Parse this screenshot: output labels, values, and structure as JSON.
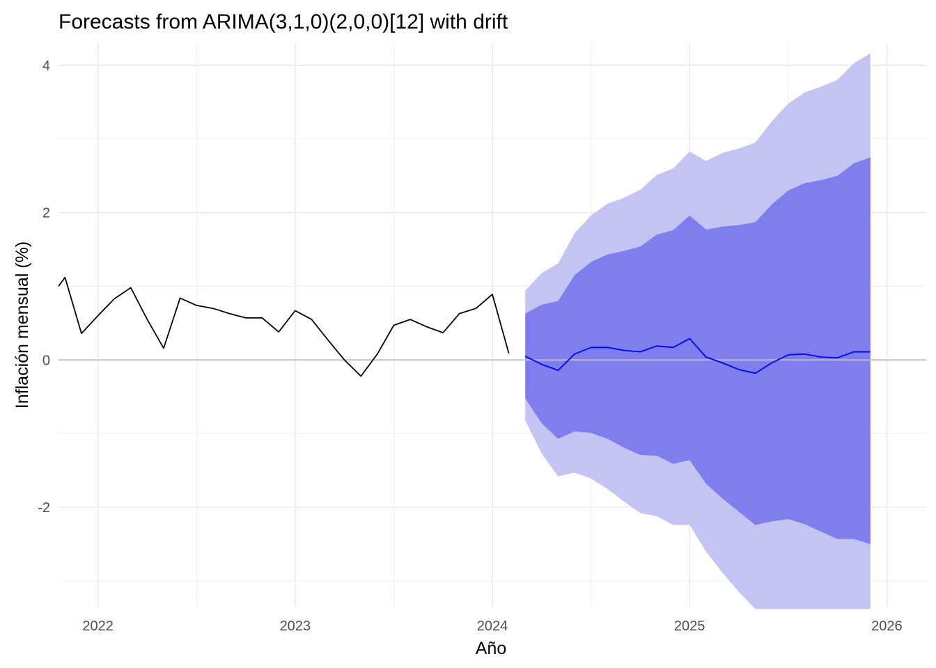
{
  "chart_data": {
    "type": "line",
    "title": "Forecasts from ARIMA(3,1,0)(2,0,0)[12] with drift",
    "xlabel": "Año",
    "ylabel": "Inflación mensual (%)",
    "xlim": [
      2021.8,
      2026.2
    ],
    "ylim": [
      -3.35,
      4.3
    ],
    "x_ticks": [
      2022,
      2023,
      2024,
      2025,
      2026
    ],
    "x_tick_labels": [
      "2022",
      "2023",
      "2024",
      "2025",
      "2026"
    ],
    "y_ticks": [
      -2,
      0,
      2,
      4
    ],
    "y_tick_labels": [
      "-2",
      "0",
      "2",
      "4"
    ],
    "hline": 0,
    "grid": true,
    "colors": {
      "observed": "#000000",
      "forecast": "#0000ff",
      "band80": "#7e7eee",
      "band95": "#c4c4f4",
      "zero_line": "#bebebe",
      "grid": "#ebebeb"
    },
    "observed": {
      "x": [
        2021.8333,
        2021.9167,
        2022.0,
        2022.0833,
        2022.1667,
        2022.25,
        2022.3333,
        2022.4167,
        2022.5,
        2022.5833,
        2022.6667,
        2022.75,
        2022.8333,
        2022.9167,
        2023.0,
        2023.0833,
        2023.1667,
        2023.25,
        2023.3333,
        2023.4167,
        2023.5,
        2023.5833,
        2023.6667,
        2023.75,
        2023.8333,
        2023.9167,
        2024.0,
        2024.0833
      ],
      "y": [
        1.12,
        0.36,
        0.6,
        0.83,
        0.98,
        0.55,
        0.16,
        0.84,
        0.74,
        0.7,
        0.63,
        0.57,
        0.57,
        0.38,
        0.67,
        0.55,
        0.27,
        0.0,
        -0.22,
        0.08,
        0.47,
        0.55,
        0.45,
        0.37,
        0.63,
        0.7,
        0.89,
        0.09
      ]
    },
    "forecast": {
      "x": [
        2024.1667,
        2024.25,
        2024.3333,
        2024.4167,
        2024.5,
        2024.5833,
        2024.6667,
        2024.75,
        2024.8333,
        2024.9167,
        2025.0,
        2025.0833,
        2025.1667,
        2025.25,
        2025.3333,
        2025.4167,
        2025.5,
        2025.5833,
        2025.6667,
        2025.75,
        2025.8333,
        2025.9167
      ],
      "mean": [
        0.05,
        -0.06,
        -0.14,
        0.08,
        0.17,
        0.17,
        0.13,
        0.11,
        0.19,
        0.17,
        0.29,
        0.04,
        -0.04,
        -0.13,
        -0.18,
        -0.04,
        0.07,
        0.08,
        0.04,
        0.03,
        0.11,
        0.11
      ],
      "lo80": [
        -0.52,
        -0.86,
        -1.07,
        -0.97,
        -0.99,
        -1.07,
        -1.19,
        -1.29,
        -1.3,
        -1.41,
        -1.36,
        -1.68,
        -1.88,
        -2.06,
        -2.24,
        -2.19,
        -2.16,
        -2.23,
        -2.33,
        -2.43,
        -2.43,
        -2.5
      ],
      "hi80": [
        0.63,
        0.75,
        0.8,
        1.15,
        1.33,
        1.43,
        1.48,
        1.54,
        1.7,
        1.76,
        1.96,
        1.77,
        1.81,
        1.83,
        1.87,
        2.11,
        2.3,
        2.4,
        2.44,
        2.5,
        2.67,
        2.75
      ],
      "lo95": [
        -0.82,
        -1.27,
        -1.58,
        -1.53,
        -1.61,
        -1.75,
        -1.92,
        -2.08,
        -2.12,
        -2.24,
        -2.24,
        -2.6,
        -2.89,
        -3.15,
        -3.38,
        -3.38,
        -3.38,
        -3.38,
        -3.38,
        -3.38,
        -3.38,
        -3.38
      ],
      "hi95": [
        0.94,
        1.18,
        1.31,
        1.72,
        1.96,
        2.12,
        2.2,
        2.31,
        2.51,
        2.6,
        2.83,
        2.7,
        2.81,
        2.87,
        2.95,
        3.24,
        3.48,
        3.63,
        3.71,
        3.8,
        4.03,
        4.16
      ]
    }
  }
}
